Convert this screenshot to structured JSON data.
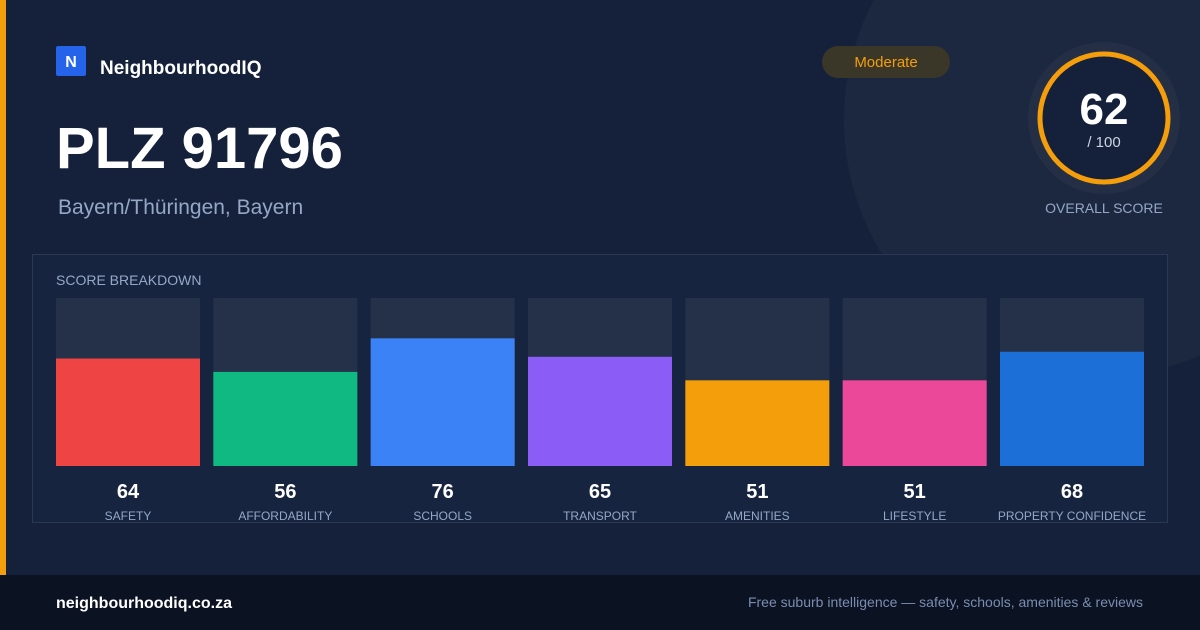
{
  "header": {
    "logo_letter": "N",
    "brand": "NeighbourhoodIQ",
    "badge": "Moderate"
  },
  "title": "PLZ 91796",
  "subtitle": "Bayern/Thüringen, Bayern",
  "score": {
    "value": 62,
    "max": {
      "value": 100,
      "label": "/ 100"
    },
    "label": "OVERALL SCORE"
  },
  "breakdown": {
    "title": "SCORE BREAKDOWN",
    "items": [
      {
        "label": "SAFETY",
        "value": 64,
        "color": "#ef4444"
      },
      {
        "label": "AFFORDABILITY",
        "value": 56,
        "color": "#10b981"
      },
      {
        "label": "SCHOOLS",
        "value": 76,
        "color": "#3b82f6"
      },
      {
        "label": "TRANSPORT",
        "value": 65,
        "color": "#8b5cf6"
      },
      {
        "label": "AMENITIES",
        "value": 51,
        "color": "#f59e0b"
      },
      {
        "label": "LIFESTYLE",
        "value": 51,
        "color": "#ec4899"
      },
      {
        "label": "PROPERTY CONFIDENCE",
        "value": 68,
        "color": "#1d6fd8"
      }
    ]
  },
  "footer": {
    "site": "neighbourhoodiq.co.za",
    "tagline": "Free suburb intelligence — safety, schools, amenities & reviews"
  }
}
